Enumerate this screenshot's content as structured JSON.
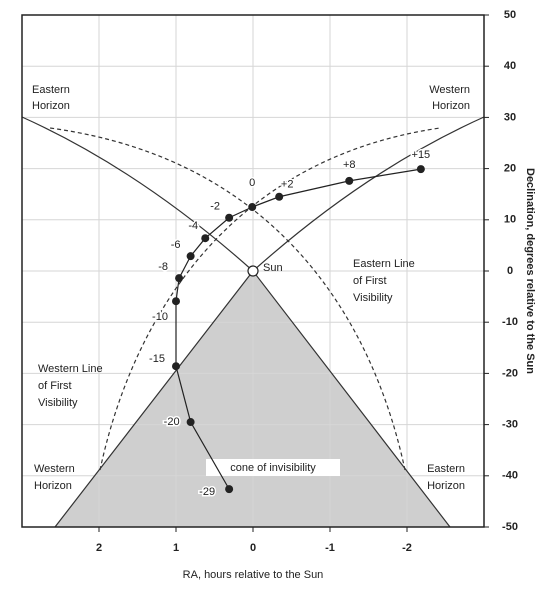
{
  "chart_data": {
    "type": "line",
    "x_label": "RA, hours relative to the Sun",
    "y_label": "Declination, degrees relative to the Sun",
    "xlim": [
      3,
      -3
    ],
    "xticks": [
      2,
      1,
      0,
      -1,
      -2
    ],
    "ylim": [
      -50,
      50
    ],
    "yticks": [
      50,
      40,
      30,
      20,
      10,
      0,
      -10,
      -20,
      -30,
      -40,
      -50
    ],
    "grid": true,
    "series": [
      {
        "color": "#222222",
        "x": [
          -2.18,
          -1.25,
          -0.34,
          0.01,
          0.31,
          0.62,
          0.81,
          0.96,
          1.0,
          1.0,
          0.81,
          0.31
        ],
        "values": [
          19.9,
          17.6,
          14.5,
          12.5,
          10.4,
          6.4,
          2.9,
          -1.4,
          -5.9,
          -18.6,
          -29.5,
          -42.6
        ],
        "point_labels": [
          "+15",
          "+8",
          "+2",
          "0",
          "-2",
          "-4",
          "-6",
          "-8",
          "-10",
          "-15",
          "-20",
          "-29"
        ]
      }
    ],
    "annotations": [
      {
        "lines": [
          "Eastern",
          "Horizon"
        ]
      },
      {
        "lines": [
          "Western",
          "Horizon"
        ]
      },
      {
        "lines": [
          "Western",
          "Horizon"
        ]
      },
      {
        "lines": [
          "Eastern",
          "Horizon"
        ]
      },
      {
        "lines": [
          "Eastern Line",
          "of First",
          "Visibility"
        ]
      },
      {
        "lines": [
          "Western Line",
          "of First",
          "Visibility"
        ]
      },
      {
        "lines": [
          "Sun"
        ]
      },
      {
        "lines": [
          "cone of invisibility"
        ]
      }
    ]
  }
}
